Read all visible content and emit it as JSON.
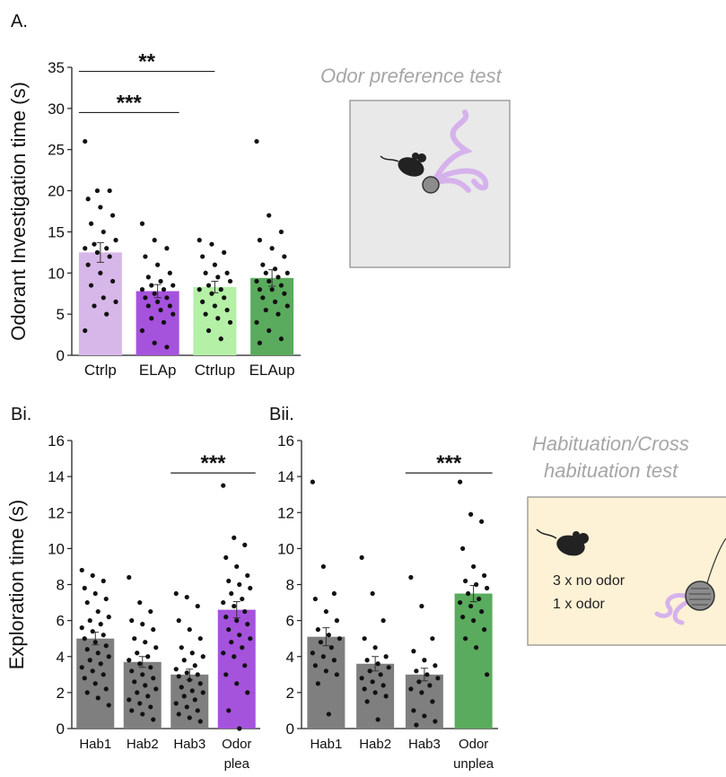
{
  "colors": {
    "ctrl_pleasant": "#d7b7e9",
    "ela_pleasant": "#a552dd",
    "ctrl_unpleasant": "#b4f0a6",
    "ela_unpleasant": "#5aab5d",
    "gray": "#7f7f7f",
    "odor_plea": "#a552dd",
    "odor_unplea": "#5aab5d",
    "test_box": "#e9e9e9",
    "hab_box": "#fdf2d6",
    "odor_plume": "#d6b2ec"
  },
  "panel_labels": {
    "a": "A.",
    "bi": "Bi.",
    "bii": "Bii."
  },
  "annotations": {
    "odor_test_title": "Odor preference test",
    "hab_title_line1": "Habituation/Cross",
    "hab_title_line2": "habituation test",
    "hab_line1": "3 x no odor",
    "hab_line2": "1 x odor"
  },
  "icons": [
    "mouse-icon",
    "odor-ball-icon",
    "odor-plume-icon"
  ],
  "chart_data": [
    {
      "id": "A",
      "type": "bar",
      "ylabel": "Odorant Investigation time (s)",
      "ylim": [
        0,
        35
      ],
      "yticks": [
        "0",
        "5",
        "10",
        "15",
        "20",
        "25",
        "30",
        "35"
      ],
      "categories": [
        "Ctrlp",
        "ELAp",
        "Ctrlup",
        "ELAup"
      ],
      "values": [
        12.5,
        7.8,
        8.3,
        9.4
      ],
      "errors": [
        1.2,
        0.8,
        0.7,
        1.0
      ],
      "significance": [
        {
          "from": 0,
          "to": 1,
          "label": "***",
          "y": 29.5
        },
        {
          "from": 0,
          "to": 2,
          "label": "**",
          "y": 34.5
        }
      ],
      "points": [
        [
          26,
          20,
          20,
          19,
          18,
          17,
          16,
          15,
          14,
          13.5,
          13,
          13,
          12.5,
          12,
          11,
          10,
          9,
          8.5,
          7,
          6.5,
          6,
          5,
          3
        ],
        [
          16,
          14,
          13,
          12,
          11,
          10,
          9.5,
          9,
          8.5,
          8.5,
          8,
          8,
          7.5,
          7,
          7,
          6.5,
          6,
          6,
          5.5,
          5,
          4.5,
          4,
          3,
          1.5,
          1
        ],
        [
          14,
          13.5,
          12.5,
          12,
          11,
          10,
          10,
          9.5,
          9,
          8.5,
          8,
          8,
          7.5,
          7,
          6.5,
          6,
          5.5,
          5,
          4.5,
          4,
          3,
          2
        ],
        [
          26,
          17,
          15,
          14,
          13,
          12,
          11,
          10.5,
          10,
          10,
          9.5,
          9,
          9,
          8.5,
          8,
          8,
          7.5,
          7,
          6.5,
          6,
          5.5,
          5,
          4,
          3,
          2,
          1.5
        ]
      ]
    },
    {
      "id": "Bi",
      "type": "bar",
      "ylabel": "Exploration time (s)",
      "ylim": [
        0,
        16
      ],
      "yticks": [
        "0",
        "2",
        "4",
        "6",
        "8",
        "10",
        "12",
        "14",
        "16"
      ],
      "categories": [
        "Hab1",
        "Hab2",
        "Hab3",
        "Odor"
      ],
      "category_sublabels": [
        "",
        "",
        "",
        "plea"
      ],
      "values": [
        5.0,
        3.7,
        3.0,
        6.6
      ],
      "errors": [
        0.35,
        0.3,
        0.3,
        0.45
      ],
      "significance": [
        {
          "from": 2,
          "to": 3,
          "label": "***",
          "y": 14.2
        }
      ],
      "points": [
        [
          8.8,
          8.5,
          8.2,
          7.8,
          7.5,
          7.2,
          7,
          6.5,
          6.2,
          6,
          5.8,
          5.6,
          5.4,
          5.2,
          5,
          4.8,
          4.6,
          4.4,
          4.2,
          4,
          3.8,
          3.6,
          3.4,
          3.2,
          3,
          2.8,
          2.5,
          2.2,
          2,
          1.7,
          1.3
        ],
        [
          8.4,
          7,
          6.5,
          6,
          5.8,
          5.5,
          5,
          4.8,
          4.5,
          4.2,
          4,
          3.8,
          3.6,
          3.4,
          3.2,
          3,
          2.8,
          2.6,
          2.4,
          2.2,
          2,
          1.8,
          1.6,
          1.4,
          1.2,
          1,
          0.8,
          0.5
        ],
        [
          7.5,
          7.3,
          6.8,
          6,
          5.5,
          5,
          4.5,
          4.2,
          4,
          3.8,
          3.5,
          3.3,
          3.1,
          3,
          2.9,
          2.7,
          2.5,
          2.3,
          2.1,
          2,
          1.8,
          1.6,
          1.4,
          1.2,
          1,
          0.8,
          0.6,
          0.4
        ],
        [
          13.5,
          10.6,
          10.2,
          9.5,
          9,
          8.5,
          8.2,
          8,
          7.8,
          7.5,
          7.2,
          7,
          6.8,
          6.5,
          6.2,
          6,
          5.8,
          5.5,
          5.2,
          5,
          4.8,
          4.5,
          4.2,
          4,
          3.5,
          3,
          2.5,
          2,
          1,
          0
        ]
      ]
    },
    {
      "id": "Bii",
      "type": "bar",
      "ylim": [
        0,
        16
      ],
      "yticks": [
        "0",
        "2",
        "4",
        "6",
        "8",
        "10",
        "12",
        "14",
        "16"
      ],
      "categories": [
        "Hab1",
        "Hab2",
        "Hab3",
        "Odor"
      ],
      "category_sublabels": [
        "",
        "",
        "",
        "unplea"
      ],
      "values": [
        5.1,
        3.6,
        3.0,
        7.5
      ],
      "errors": [
        0.5,
        0.4,
        0.35,
        0.45
      ],
      "significance": [
        {
          "from": 2,
          "to": 3,
          "label": "***",
          "y": 14.2
        }
      ],
      "points": [
        [
          13.7,
          9,
          7.5,
          7.2,
          6.5,
          6,
          5.5,
          5.2,
          5,
          4.8,
          4.5,
          4.2,
          4,
          3.8,
          3.5,
          3.2,
          3,
          2.5,
          0.8
        ],
        [
          9.5,
          7.5,
          6,
          5,
          4.5,
          4,
          3.8,
          3.6,
          3.4,
          3.2,
          3,
          2.8,
          2.6,
          2.4,
          2.2,
          2,
          1.8,
          1.5,
          0.5
        ],
        [
          8.4,
          6.8,
          5,
          4.3,
          3.8,
          3.5,
          3.2,
          3,
          2.8,
          2.6,
          2.4,
          2.2,
          2,
          1.5,
          1,
          0.7,
          0.4,
          0.2
        ],
        [
          13.7,
          11.9,
          11.5,
          10,
          9,
          8.5,
          8.2,
          8,
          7.8,
          7.5,
          7.2,
          7,
          6.8,
          6.5,
          6.2,
          6,
          5.5,
          5,
          4.5,
          3
        ]
      ]
    }
  ]
}
